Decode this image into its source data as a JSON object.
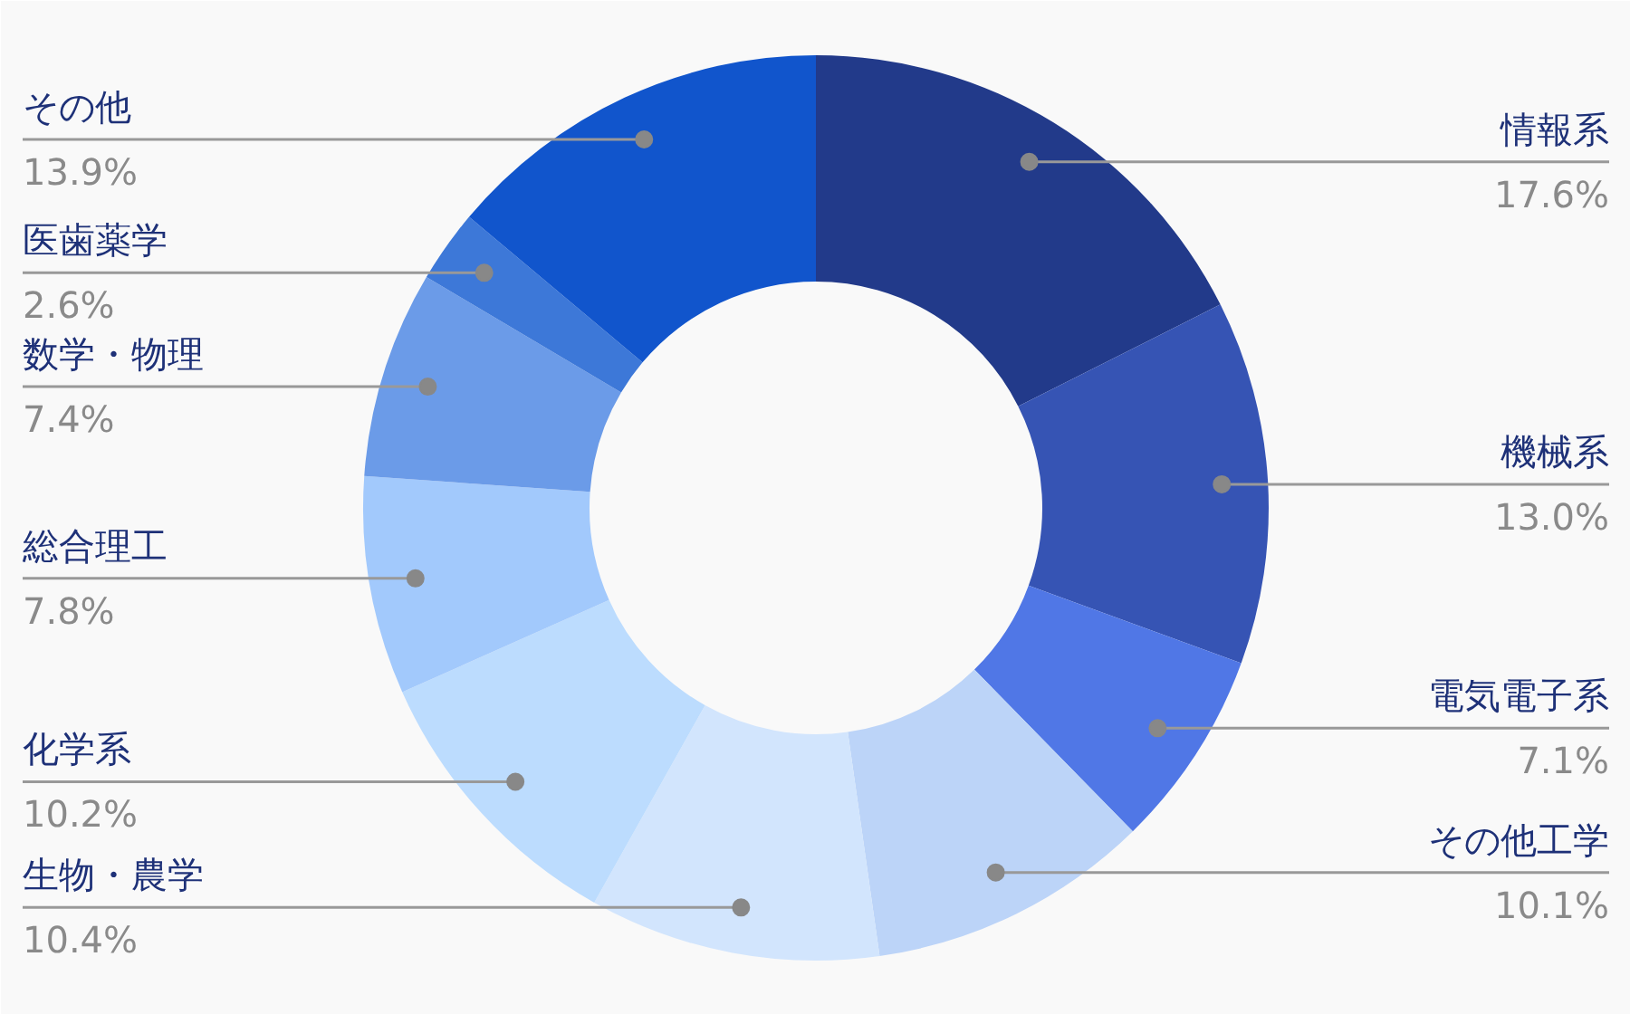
{
  "chart_data": {
    "type": "donut",
    "categories": [
      "情報系",
      "機械系",
      "電気電子系",
      "その他工学",
      "生物・農学",
      "化学系",
      "総合理工",
      "数学・物理",
      "医歯薬学",
      "その他"
    ],
    "values": [
      17.6,
      13.0,
      7.1,
      10.1,
      10.4,
      10.2,
      7.8,
      7.4,
      2.6,
      13.9
    ],
    "value_labels": [
      "17.6%",
      "13.0%",
      "7.1%",
      "10.1%",
      "10.4%",
      "10.2%",
      "7.8%",
      "7.4%",
      "2.6%",
      "13.9%"
    ],
    "colors": [
      "#223a8a",
      "#3654b4",
      "#5077e6",
      "#bcd4f8",
      "#d2e5fd",
      "#bcdcfe",
      "#a2c9fc",
      "#6b9be8",
      "#3d78d8",
      "#1155cc"
    ]
  }
}
